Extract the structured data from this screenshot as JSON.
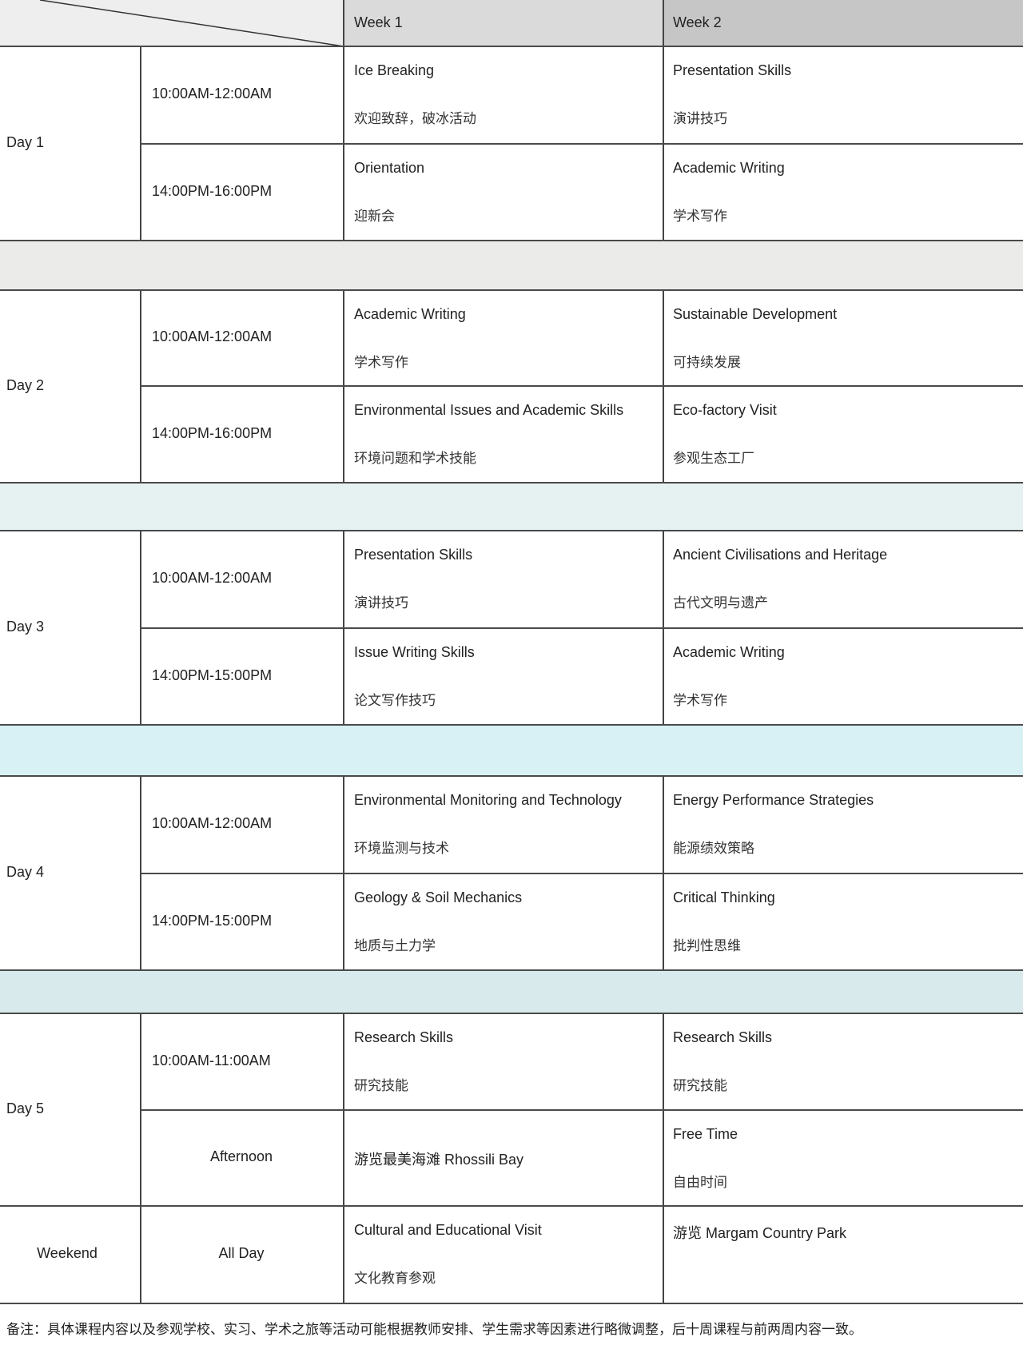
{
  "header": {
    "week1": "Week 1",
    "week2": "Week 2"
  },
  "colors": {
    "header_left": "#eeeeee",
    "header_week1": "#dadada",
    "header_week2": "#c6c6c6",
    "separators": [
      "#ebecea",
      "#e6f2f1",
      "#d8f1f4",
      "#d8eaec"
    ]
  },
  "days": [
    {
      "label": "Day 1",
      "slots": [
        {
          "time": "10:00AM-12:00AM",
          "week1": {
            "en": "Ice Breaking",
            "cn": "欢迎致辞，破冰活动"
          },
          "week2": {
            "en": "Presentation Skills",
            "cn": "演讲技巧"
          }
        },
        {
          "time": "14:00PM-16:00PM",
          "week1": {
            "en": "Orientation",
            "cn": "迎新会"
          },
          "week2": {
            "en": "Academic Writing",
            "cn": "学术写作"
          }
        }
      ]
    },
    {
      "label": "Day 2",
      "slots": [
        {
          "time": "10:00AM-12:00AM",
          "week1": {
            "en": "Academic Writing",
            "cn": "学术写作"
          },
          "week2": {
            "en": "Sustainable Development",
            "cn": "可持续发展"
          }
        },
        {
          "time": "14:00PM-16:00PM",
          "week1": {
            "en": "Environmental Issues and Academic Skills",
            "cn": "环境问题和学术技能"
          },
          "week2": {
            "en": "Eco-factory Visit",
            "cn": "参观生态工厂"
          }
        }
      ]
    },
    {
      "label": "Day 3",
      "slots": [
        {
          "time": "10:00AM-12:00AM",
          "week1": {
            "en": "Presentation Skills",
            "cn": "演讲技巧"
          },
          "week2": {
            "en": "Ancient Civilisations and Heritage",
            "cn": "古代文明与遗产"
          }
        },
        {
          "time": "14:00PM-15:00PM",
          "week1": {
            "en": "Issue Writing Skills",
            "cn": "论文写作技巧"
          },
          "week2": {
            "en": "Academic Writing",
            "cn": "学术写作"
          }
        }
      ]
    },
    {
      "label": "Day 4",
      "slots": [
        {
          "time": "10:00AM-12:00AM",
          "week1": {
            "en": "Environmental Monitoring and Technology",
            "cn": "环境监测与技术"
          },
          "week2": {
            "en": "Energy Performance Strategies",
            "cn": "能源绩效策略"
          }
        },
        {
          "time": "14:00PM-15:00PM",
          "week1": {
            "en": "Geology & Soil Mechanics",
            "cn": "地质与土力学"
          },
          "week2": {
            "en": "Critical Thinking",
            "cn": "批判性思维"
          }
        }
      ]
    },
    {
      "label": "Day 5",
      "slots": [
        {
          "time": "10:00AM-11:00AM",
          "week1": {
            "en": "Research Skills",
            "cn": "研究技能"
          },
          "week2": {
            "en": "Research Skills",
            "cn": "研究技能"
          }
        },
        {
          "time": "Afternoon",
          "week1": {
            "mixed": "游览最美海滩 Rhossili Bay"
          },
          "week2": {
            "en": "Free Time",
            "cn": "自由时间"
          }
        }
      ]
    }
  ],
  "weekend": {
    "label": "Weekend",
    "time": "All Day",
    "week1": {
      "en": "Cultural and Educational Visit",
      "cn": "文化教育参观"
    },
    "week2": {
      "mixed": "游览 Margam Country Park"
    }
  },
  "footnote": "备注：具体课程内容以及参观学校、实习、学术之旅等活动可能根据教师安排、学生需求等因素进行略微调整，后十周课程与前两周内容一致。"
}
